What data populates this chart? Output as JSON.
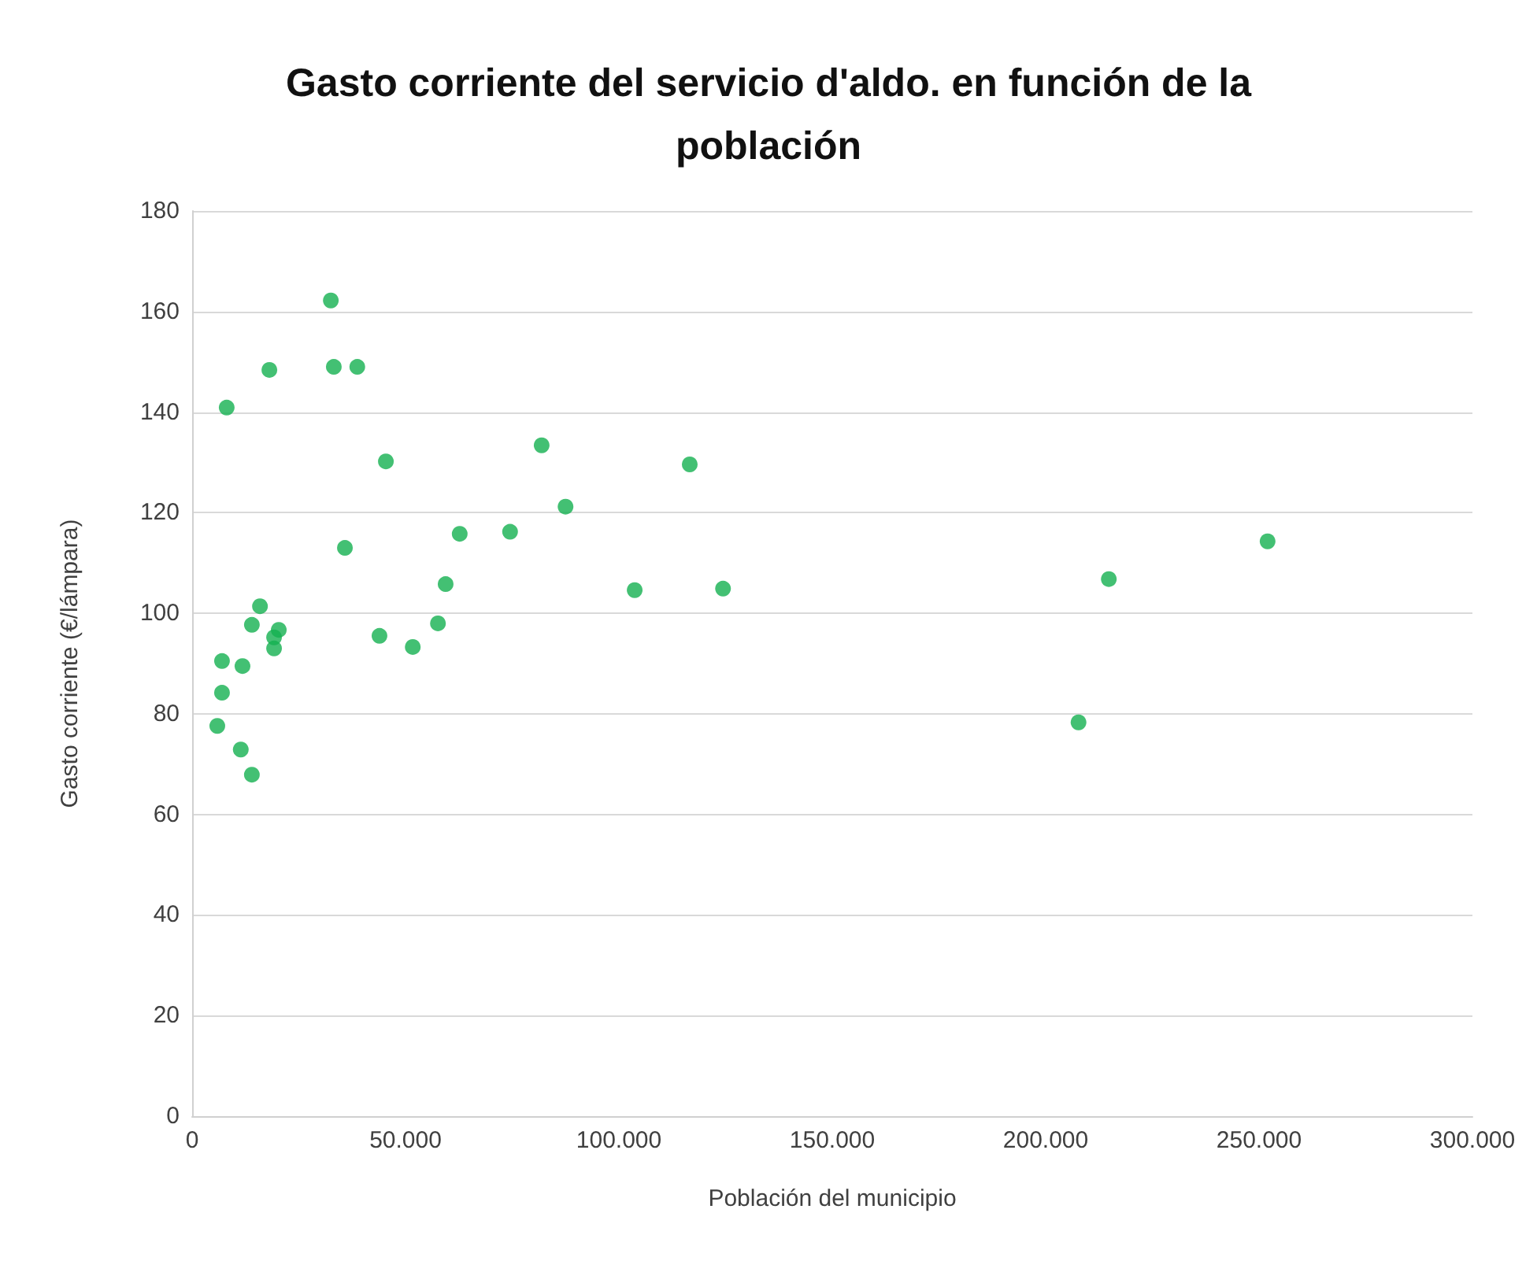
{
  "chart_data": {
    "type": "scatter",
    "title": "Gasto corriente del servicio d'aldo. en función de la\npoblación",
    "xlabel": "Población del municipio",
    "ylabel": "Gasto corriente (€/lámpara)",
    "x": [
      5900,
      7000,
      7000,
      8100,
      11400,
      11800,
      14000,
      14000,
      15900,
      18100,
      19200,
      19200,
      20300,
      32500,
      33200,
      35800,
      38700,
      43900,
      45400,
      51700,
      57600,
      59400,
      62700,
      74500,
      81900,
      87500,
      103700,
      116600,
      124400,
      207700,
      214800,
      252000
    ],
    "series": [
      {
        "color": "#14b050",
        "values": [
          77.6,
          84.2,
          90.5,
          140.9,
          72.9,
          89.5,
          67.9,
          97.7,
          101.4,
          148.4,
          93.0,
          95.2,
          96.7,
          162.2,
          149.0,
          113.0,
          149.0,
          95.5,
          130.2,
          93.3,
          98.0,
          105.8,
          115.8,
          116.2,
          133.4,
          121.2,
          104.6,
          129.6,
          104.9,
          78.3,
          106.8,
          114.3
        ]
      }
    ],
    "xlim": [
      0,
      300000
    ],
    "xticks": [
      0,
      {
        "value": 50000,
        "label": "50.000"
      },
      {
        "value": 100000,
        "label": "100.000"
      },
      {
        "value": 150000,
        "label": "150.000"
      },
      {
        "value": 200000,
        "label": "200.000"
      },
      {
        "value": 250000,
        "label": "250.000"
      },
      {
        "value": 300000,
        "label": "300.000"
      }
    ],
    "ylim": [
      0,
      180
    ],
    "yticks": [
      0,
      20,
      40,
      60,
      80,
      100,
      120,
      140,
      160,
      180
    ],
    "grid": "y",
    "marker": "circle"
  }
}
